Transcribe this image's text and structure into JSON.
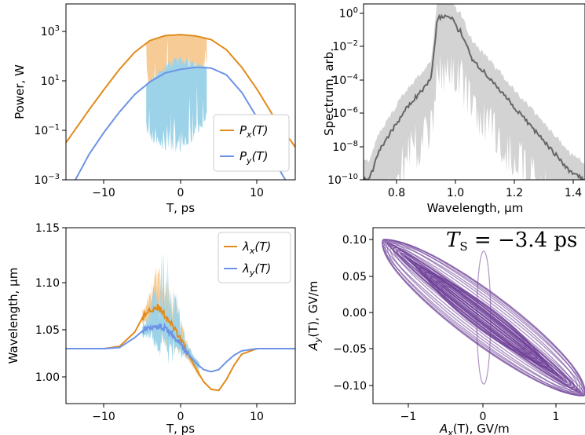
{
  "colors": {
    "px": "#e08b1a",
    "py": "#6d93e6",
    "px_band": "#f6cb95",
    "py_band": "#9dd3e8",
    "spectrum": "#666666",
    "spectrum_band": "#d3d3d3",
    "polarization": "#6b3c96"
  },
  "chart_data": [
    {
      "type": "line",
      "xlabel": "T, ps",
      "ylabel": "Power, W",
      "xlim": [
        -15,
        15
      ],
      "ylim": [
        0.001,
        10000
      ],
      "yscale": "log",
      "xticks": [
        "−10",
        "0",
        "10"
      ],
      "yticks": [
        "10^-3",
        "10^-1",
        "10^1",
        "10^3"
      ],
      "legend": "lower-right",
      "series": [
        {
          "name": "P_x(T)",
          "x": [
            -15,
            -12,
            -10,
            -8,
            -6,
            -4,
            -2,
            0,
            2,
            4,
            6,
            8,
            10,
            12,
            15
          ],
          "y": [
            0.03,
            0.6,
            4,
            25,
            120,
            350,
            550,
            600,
            530,
            380,
            150,
            30,
            4,
            0.4,
            0.02
          ]
        },
        {
          "name": "P_y(T)",
          "x": [
            -15,
            -12,
            -10,
            -8,
            -6,
            -4,
            -2,
            0,
            2,
            4,
            6,
            8,
            10,
            12,
            15
          ],
          "y": [
            0.0002,
            0.01,
            0.08,
            0.5,
            2.5,
            8,
            18,
            25,
            30,
            28,
            15,
            3,
            0.3,
            0.008,
            0.0002
          ]
        }
      ]
    },
    {
      "type": "line",
      "xlabel": "Wavelength, μm",
      "ylabel": "Spectrum, arb.",
      "xlim": [
        0.75,
        1.5
      ],
      "ylim": [
        1e-10,
        2
      ],
      "yscale": "log",
      "xticks": [
        "0.8",
        "1.0",
        "1.2",
        "1.4"
      ],
      "yticks": [
        "10^-10",
        "10^-8",
        "10^-6",
        "10^-4",
        "10^-2",
        "10^0"
      ],
      "series": [
        {
          "x": [
            0.77,
            0.8,
            0.85,
            0.9,
            0.95,
            0.98,
            1.0,
            1.02,
            1.05,
            1.07,
            1.08,
            1.1,
            1.12,
            1.15,
            1.2,
            1.25,
            1.3,
            1.35,
            1.4,
            1.45,
            1.5
          ],
          "y": [
            1e-10,
            4e-09,
            1e-07,
            2e-06,
            2e-05,
            0.0001,
            0.3,
            0.4,
            0.35,
            0.05,
            0.05,
            0.006,
            0.001,
            0.0003,
            3e-05,
            3e-06,
            3e-07,
            3e-08,
            3e-09,
            3e-10,
            1e-10
          ]
        }
      ]
    },
    {
      "type": "line",
      "xlabel": "T, ps",
      "ylabel": "Wavelength, μm",
      "xlim": [
        -15,
        15
      ],
      "ylim": [
        0.99,
        1.15
      ],
      "xticks": [
        "−10",
        "0",
        "10"
      ],
      "yticks": [
        "1.00",
        "1.05",
        "1.10",
        "1.15"
      ],
      "legend": "top-right",
      "series": [
        {
          "name": "λ_x(T)",
          "x": [
            -15,
            -10,
            -8,
            -6,
            -5,
            -4,
            -3,
            -2,
            -1,
            0,
            1,
            2,
            3,
            4,
            5,
            6,
            7,
            8,
            10,
            15
          ],
          "y": [
            1.04,
            1.04,
            1.042,
            1.055,
            1.068,
            1.076,
            1.078,
            1.07,
            1.06,
            1.048,
            1.035,
            1.022,
            1.01,
            1.003,
            1.002,
            1.012,
            1.025,
            1.035,
            1.04,
            1.04
          ]
        },
        {
          "name": "λ_y(T)",
          "x": [
            -15,
            -10,
            -8,
            -6,
            -5,
            -4,
            -3,
            -2,
            -1,
            0,
            1,
            2,
            3,
            4,
            5,
            6,
            7,
            8,
            10,
            15
          ],
          "y": [
            1.04,
            1.04,
            1.041,
            1.05,
            1.056,
            1.06,
            1.061,
            1.058,
            1.052,
            1.044,
            1.035,
            1.027,
            1.021,
            1.019,
            1.021,
            1.028,
            1.034,
            1.038,
            1.04,
            1.04
          ]
        }
      ]
    },
    {
      "type": "line",
      "title": "T_S = −3.4 ps",
      "xlabel": "A_x(T), GV/m",
      "ylabel": "A_y(T), GV/m",
      "xlim": [
        -1.45,
        1.45
      ],
      "ylim": [
        -0.11,
        0.115
      ],
      "xticks": [
        "−1",
        "0",
        "1"
      ],
      "yticks": [
        "−0.10",
        "−0.05",
        "0.00",
        "0.05",
        "0.10"
      ],
      "series": [
        {
          "x": [
            -1.3,
            -0.6,
            0,
            0.6,
            1.3,
            0.6,
            0,
            -0.6,
            -1.3
          ],
          "y": [
            0.08,
            0.05,
            0.01,
            -0.03,
            -0.08,
            -0.05,
            -0.01,
            0.03,
            0.08
          ]
        }
      ]
    }
  ]
}
